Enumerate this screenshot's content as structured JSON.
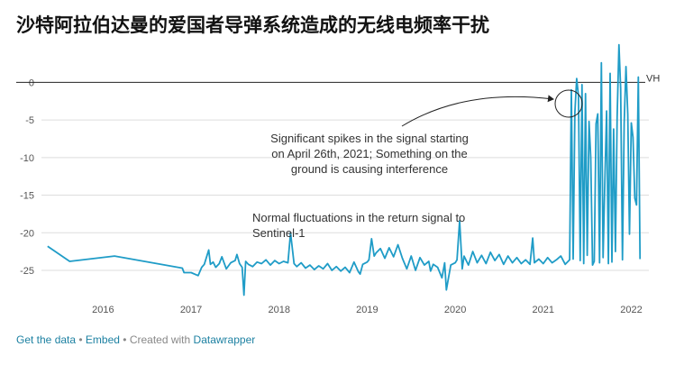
{
  "title": "沙特阿拉伯达曼的爱国者导弹系统造成的无线电频率干扰",
  "footer": {
    "get_data": "Get the data",
    "sep1": " • ",
    "embed": "Embed",
    "sep2": " • Created with ",
    "datawrapper": "Datawrapper"
  },
  "colors": {
    "line": "#1f9cc7",
    "grid": "#dddddd",
    "text": "#333333",
    "link": "#1d81a2"
  },
  "chart_data": {
    "type": "line",
    "title": "沙特阿拉伯达曼的爱国者导弹系统造成的无线电频率干扰",
    "xlabel": "",
    "ylabel": "",
    "xlim": [
      2015.3,
      2022.2
    ],
    "ylim": [
      -28,
      4
    ],
    "x_ticks": [
      2016,
      2017,
      2018,
      2019,
      2020,
      2021,
      2022
    ],
    "x_tick_labels": [
      "2016",
      "2017",
      "2018",
      "2019",
      "2020",
      "2021",
      "2022"
    ],
    "y_ticks": [
      0,
      -5,
      -10,
      -15,
      -20,
      -25
    ],
    "y_tick_labels": [
      "0",
      "-5",
      "-10",
      "-15",
      "-20",
      "-25"
    ],
    "grid": true,
    "reference_line": {
      "y": 0
    },
    "series": [
      {
        "name": "VH",
        "x": [
          2015.37,
          2015.62,
          2016.13,
          2016.9,
          2016.92,
          2017.0,
          2017.08,
          2017.12,
          2017.15,
          2017.2,
          2017.22,
          2017.25,
          2017.28,
          2017.32,
          2017.35,
          2017.4,
          2017.45,
          2017.5,
          2017.52,
          2017.55,
          2017.58,
          2017.6,
          2017.62,
          2017.65,
          2017.7,
          2017.75,
          2017.8,
          2017.85,
          2017.9,
          2017.95,
          2018.0,
          2018.05,
          2018.1,
          2018.13,
          2018.17,
          2018.2,
          2018.25,
          2018.3,
          2018.35,
          2018.4,
          2018.45,
          2018.5,
          2018.55,
          2018.6,
          2018.65,
          2018.7,
          2018.75,
          2018.8,
          2018.85,
          2018.9,
          2018.92,
          2018.95,
          2019.0,
          2019.02,
          2019.05,
          2019.08,
          2019.1,
          2019.15,
          2019.2,
          2019.25,
          2019.3,
          2019.35,
          2019.4,
          2019.45,
          2019.5,
          2019.55,
          2019.6,
          2019.65,
          2019.7,
          2019.72,
          2019.75,
          2019.8,
          2019.85,
          2019.88,
          2019.9,
          2019.95,
          2020.0,
          2020.02,
          2020.05,
          2020.08,
          2020.1,
          2020.15,
          2020.2,
          2020.25,
          2020.3,
          2020.35,
          2020.4,
          2020.45,
          2020.5,
          2020.55,
          2020.6,
          2020.65,
          2020.7,
          2020.75,
          2020.8,
          2020.85,
          2020.88,
          2020.9,
          2020.95,
          2021.0,
          2021.05,
          2021.1,
          2021.15,
          2021.2,
          2021.25,
          2021.3,
          2021.32,
          2021.34,
          2021.36,
          2021.38,
          2021.4,
          2021.42,
          2021.44,
          2021.46,
          2021.48,
          2021.5,
          2021.52,
          2021.54,
          2021.56,
          2021.58,
          2021.6,
          2021.62,
          2021.64,
          2021.66,
          2021.68,
          2021.7,
          2021.72,
          2021.74,
          2021.76,
          2021.78,
          2021.8,
          2021.82,
          2021.84,
          2021.86,
          2021.88,
          2021.9,
          2021.92,
          2021.94,
          2021.96,
          2021.98,
          2022.0,
          2022.02,
          2022.04,
          2022.06,
          2022.08,
          2022.1
        ],
        "y": [
          -21.8,
          -23.8,
          -23.1,
          -24.7,
          -25.3,
          -25.3,
          -25.7,
          -24.6,
          -24.2,
          -22.3,
          -24.2,
          -23.9,
          -24.6,
          -24.1,
          -23.2,
          -24.8,
          -24.0,
          -23.7,
          -22.9,
          -24.1,
          -24.6,
          -28.3,
          -23.8,
          -24.2,
          -24.5,
          -23.9,
          -24.1,
          -23.6,
          -24.3,
          -23.7,
          -24.1,
          -23.8,
          -24.0,
          -20.0,
          -24.1,
          -24.5,
          -24.0,
          -24.7,
          -24.3,
          -24.9,
          -24.4,
          -24.8,
          -24.1,
          -25.0,
          -24.5,
          -25.1,
          -24.6,
          -25.3,
          -23.9,
          -25.2,
          -25.5,
          -24.2,
          -23.9,
          -23.6,
          -20.8,
          -23.1,
          -22.7,
          -22.1,
          -23.4,
          -22.0,
          -23.2,
          -21.6,
          -23.4,
          -24.8,
          -23.1,
          -25.0,
          -23.3,
          -24.3,
          -23.8,
          -25.1,
          -24.2,
          -24.6,
          -26.0,
          -24.0,
          -27.6,
          -24.3,
          -24.0,
          -23.6,
          -18.4,
          -24.8,
          -23.1,
          -24.3,
          -22.5,
          -24.0,
          -23.0,
          -24.1,
          -22.6,
          -23.7,
          -22.9,
          -24.2,
          -23.1,
          -24.0,
          -23.3,
          -24.1,
          -23.6,
          -24.2,
          -20.7,
          -24.0,
          -23.5,
          -24.1,
          -23.3,
          -24.0,
          -23.6,
          -23.1,
          -24.2,
          -23.6,
          -1.0,
          -23.5,
          -4.0,
          0.5,
          -1.8,
          -23.7,
          -0.3,
          -24.1,
          -1.5,
          -23.0,
          -5.2,
          -10.0,
          -24.3,
          -23.8,
          -5.5,
          -4.2,
          -24.0,
          2.6,
          -23.3,
          -13.0,
          -3.8,
          -24.1,
          1.2,
          -23.9,
          -6.2,
          -22.5,
          -4.6,
          5.0,
          -0.8,
          -23.6,
          -5.5,
          2.1,
          -4.3,
          -20.2,
          -5.4,
          -7.3,
          -15.4,
          -16.3,
          0.7,
          -23.5
        ]
      }
    ],
    "annotations": [
      {
        "lines": [
          "Significant spikes in the signal starting",
          "on April 26th, 2021; Something on the",
          "ground is causing interference"
        ]
      },
      {
        "lines": [
          "Normal fluctuations in the return signal to",
          "Sentinel-1"
        ]
      }
    ]
  }
}
